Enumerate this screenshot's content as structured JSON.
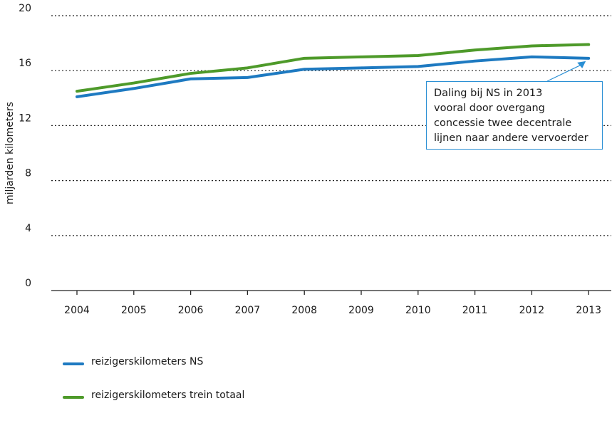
{
  "chart_data": {
    "type": "line",
    "title": "",
    "xlabel": "",
    "ylabel": "miljarden kilometers",
    "categories": [
      "2004",
      "2005",
      "2006",
      "2007",
      "2008",
      "2009",
      "2010",
      "2011",
      "2012",
      "2013"
    ],
    "y_ticks": [
      "0",
      "4",
      "8",
      "12",
      "16",
      "20"
    ],
    "ylim": [
      0,
      20
    ],
    "grid": "horizontal dotted",
    "series": [
      {
        "name": "reizigerskilometers NS",
        "color": "#1e7ac1",
        "values": [
          14.1,
          14.7,
          15.4,
          15.5,
          16.1,
          16.2,
          16.3,
          16.7,
          17.0,
          16.9
        ]
      },
      {
        "name": "reizigerskilometers trein totaal",
        "color": "#4e9a2a",
        "values": [
          14.5,
          15.1,
          15.8,
          16.2,
          16.9,
          17.0,
          17.1,
          17.5,
          17.8,
          17.9
        ]
      }
    ],
    "annotation": {
      "lines": [
        "Daling bij NS in 2013",
        "vooral door overgang",
        "concessie twee decentrale",
        "lijnen naar andere vervoerder"
      ],
      "color": "#2a8fd4"
    }
  }
}
